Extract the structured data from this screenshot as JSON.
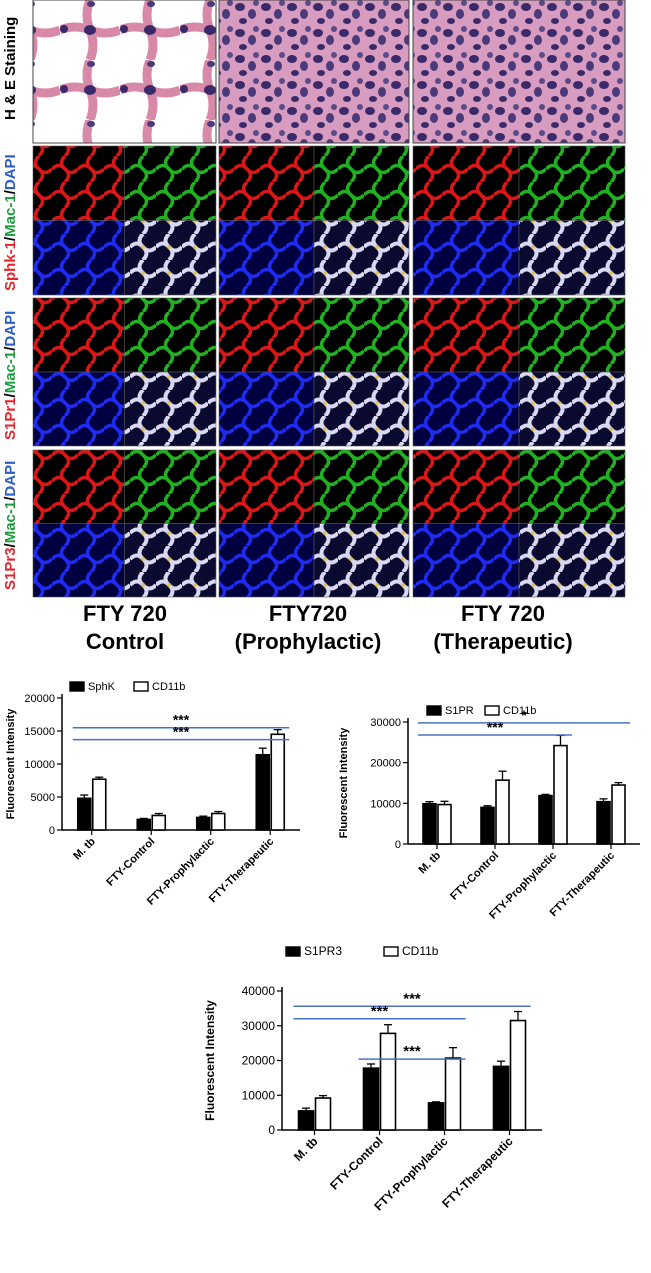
{
  "panel": {
    "row_labels": [
      {
        "parts": [
          {
            "text": "H & E Staining",
            "color": "#000000"
          }
        ]
      },
      {
        "parts": [
          {
            "text": "Sphk-1",
            "color": "#e8242b"
          },
          {
            "text": "/",
            "color": "#000000"
          },
          {
            "text": "Mac-1",
            "color": "#1a9b3c"
          },
          {
            "text": "/",
            "color": "#000000"
          },
          {
            "text": "DAPI",
            "color": "#2a5cc8"
          }
        ]
      },
      {
        "parts": [
          {
            "text": "S1Pr1",
            "color": "#e8242b"
          },
          {
            "text": "/",
            "color": "#000000"
          },
          {
            "text": "Mac-1",
            "color": "#1a9b3c"
          },
          {
            "text": "/",
            "color": "#000000"
          },
          {
            "text": "DAPI",
            "color": "#2a5cc8"
          }
        ]
      },
      {
        "parts": [
          {
            "text": "S1Pr3",
            "color": "#e8242b"
          },
          {
            "text": "/",
            "color": "#000000"
          },
          {
            "text": "Mac-1",
            "color": "#1a9b3c"
          },
          {
            "text": "/",
            "color": "#000000"
          },
          {
            "text": "DAPI",
            "color": "#2a5cc8"
          }
        ]
      }
    ],
    "group_captions": [
      {
        "line1": "FTY 720",
        "line2": "Control"
      },
      {
        "line1": "FTY720",
        "line2": "(Prophylactic)"
      },
      {
        "line1": "FTY 720",
        "line2": "(Therapeutic)"
      }
    ],
    "colors": {
      "he_background": "#d89cc0",
      "he_nuclei": "#3a2a6a",
      "red_channel": "#d81818",
      "green_channel": "#22b022",
      "blue_channel": "#1e2cf0",
      "merge_channel": "#d8d8f0",
      "tile_bg": "#000000"
    }
  },
  "chart_data": [
    {
      "type": "bar",
      "categories": [
        "M. tb",
        "FTY-Control",
        "FTY-Prophylactic",
        "FTY-Therapeutic"
      ],
      "series": [
        {
          "name": "SphK",
          "values": [
            4800,
            1600,
            1900,
            11400
          ],
          "errors": [
            500,
            150,
            200,
            1000
          ],
          "fill": "#000000"
        },
        {
          "name": "CD11b",
          "values": [
            7700,
            2200,
            2500,
            14500
          ],
          "errors": [
            300,
            300,
            300,
            700
          ],
          "fill": "#ffffff"
        }
      ],
      "ylabel": "Fluorescent Intensity",
      "ylim": [
        0,
        20000
      ],
      "yticks": [
        0,
        5000,
        10000,
        15000,
        20000
      ],
      "ytick_labels": [
        "0",
        "5000",
        "10000",
        "15000",
        "20000"
      ],
      "legend_placement": "top-left",
      "grid": false,
      "significance": [
        {
          "from": "M. tb",
          "to": "FTY-Therapeutic",
          "label": "***",
          "level": 15500
        },
        {
          "from": "M. tb",
          "to": "FTY-Therapeutic",
          "label": "***",
          "level": 13700
        }
      ]
    },
    {
      "type": "bar",
      "categories": [
        "M. tb",
        "FTY-Control",
        "FTY-Prophylactic",
        "FTY-Therapeutic"
      ],
      "series": [
        {
          "name": "S1PR",
          "values": [
            9900,
            9000,
            11900,
            10400
          ],
          "errors": [
            500,
            400,
            300,
            700
          ],
          "fill": "#000000"
        },
        {
          "name": "CD11b",
          "values": [
            9700,
            15700,
            24200,
            14500
          ],
          "errors": [
            800,
            2200,
            2500,
            600
          ],
          "fill": "#ffffff"
        }
      ],
      "ylabel": "Fluorescent Intensity",
      "ylim": [
        0,
        30000
      ],
      "yticks": [
        0,
        10000,
        20000,
        30000
      ],
      "ytick_labels": [
        "0",
        "10000",
        "20000",
        "30000"
      ],
      "legend_placement": "top-left",
      "grid": false,
      "significance": [
        {
          "from": "M. tb",
          "to": "FTY-Therapeutic",
          "label": "*",
          "level": 29800
        },
        {
          "from": "M. tb",
          "to": "FTY-Prophylactic",
          "label": "***",
          "level": 26800
        }
      ]
    },
    {
      "type": "bar",
      "categories": [
        "M. tb",
        "FTY-Control",
        "FTY-Prophylactic",
        "FTY-Therapeutic"
      ],
      "series": [
        {
          "name": "S1PR3",
          "values": [
            5500,
            17800,
            7800,
            18300
          ],
          "errors": [
            800,
            1200,
            300,
            1500
          ],
          "fill": "#000000"
        },
        {
          "name": "CD11b",
          "values": [
            9200,
            27800,
            20700,
            31500
          ],
          "errors": [
            700,
            2500,
            3000,
            2600
          ],
          "fill": "#ffffff"
        }
      ],
      "ylabel": "Fluorescent Intensity",
      "ylim": [
        0,
        40000
      ],
      "yticks": [
        0,
        10000,
        20000,
        30000,
        40000
      ],
      "ytick_labels": [
        "0",
        "10000",
        "20000",
        "30000",
        "40000"
      ],
      "legend_placement": "top",
      "grid": false,
      "significance": [
        {
          "from": "M. tb",
          "to": "FTY-Therapeutic",
          "label": "***",
          "level": 35600
        },
        {
          "from": "M. tb",
          "to": "FTY-Prophylactic",
          "label": "***",
          "level": 32000
        },
        {
          "from": "FTY-Control",
          "to": "FTY-Prophylactic",
          "label": "***",
          "level": 20400
        }
      ]
    }
  ]
}
